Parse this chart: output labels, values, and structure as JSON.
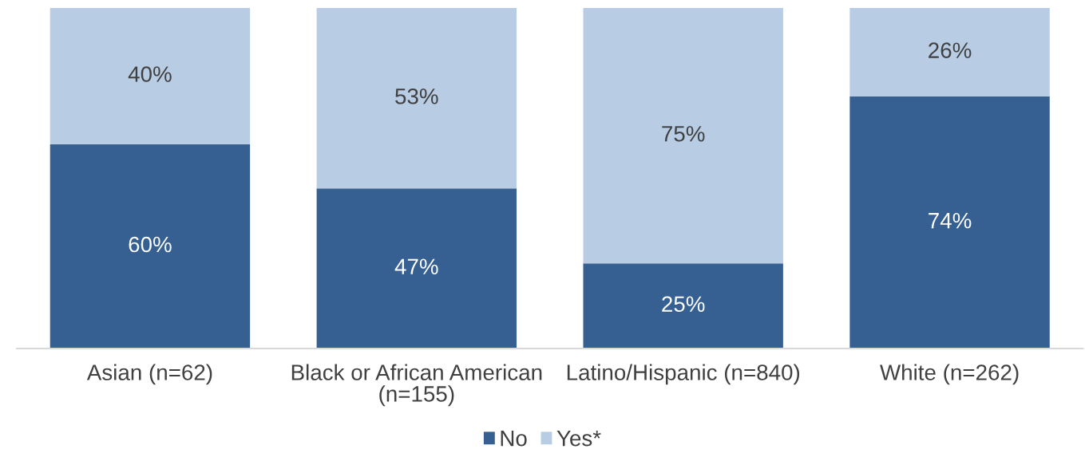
{
  "chart_data": {
    "type": "bar",
    "stacked": true,
    "categories": [
      "Asian (n=62)",
      "Black or African American\n(n=155)",
      "Latino/Hispanic (n=840)",
      "White (n=262)"
    ],
    "series": [
      {
        "name": "No",
        "color": "#366092",
        "values": [
          60,
          47,
          25,
          74
        ],
        "value_labels": [
          "60%",
          "47%",
          "25%",
          "74%"
        ]
      },
      {
        "name": "Yes*",
        "color": "#b8cce4",
        "values": [
          40,
          53,
          75,
          26
        ],
        "value_labels": [
          "40%",
          "53%",
          "75%",
          "26%"
        ]
      }
    ],
    "ylim": [
      0,
      100
    ],
    "tick_labels": "x",
    "legend": "bottom"
  }
}
